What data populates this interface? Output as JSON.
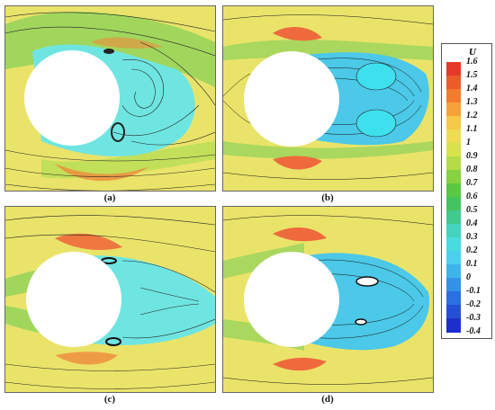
{
  "panels": [
    {
      "id": "a",
      "label": "(a)"
    },
    {
      "id": "b",
      "label": "(b)"
    },
    {
      "id": "c",
      "label": "(c)"
    },
    {
      "id": "d",
      "label": "(d)"
    }
  ],
  "legend": {
    "title": "U",
    "ticks": [
      "1.6",
      "1.5",
      "1.4",
      "1.3",
      "1.2",
      "1.1",
      "1",
      "0.9",
      "0.8",
      "0.7",
      "0.6",
      "0.5",
      "0.4",
      "0.3",
      "0.2",
      "0.1",
      "0",
      "-0.1",
      "-0.2",
      "-0.3",
      "-0.4"
    ],
    "colors": [
      "#e5392a",
      "#ee5a2a",
      "#f27c2d",
      "#f6a23a",
      "#f6c84a",
      "#eedd4e",
      "#d8e24c",
      "#b3dc47",
      "#86d243",
      "#5ac842",
      "#44c35f",
      "#41c98f",
      "#45d2bf",
      "#4adbe0",
      "#4cd0ee",
      "#3fb4ea",
      "#3391e6",
      "#2a70e0",
      "#2450d8",
      "#1c2fcc"
    ]
  },
  "colors": {
    "freestream": "#eae36a",
    "wake": "#6fe5e2",
    "fast": "#ee6a3c",
    "green": "#8ed25a"
  }
}
